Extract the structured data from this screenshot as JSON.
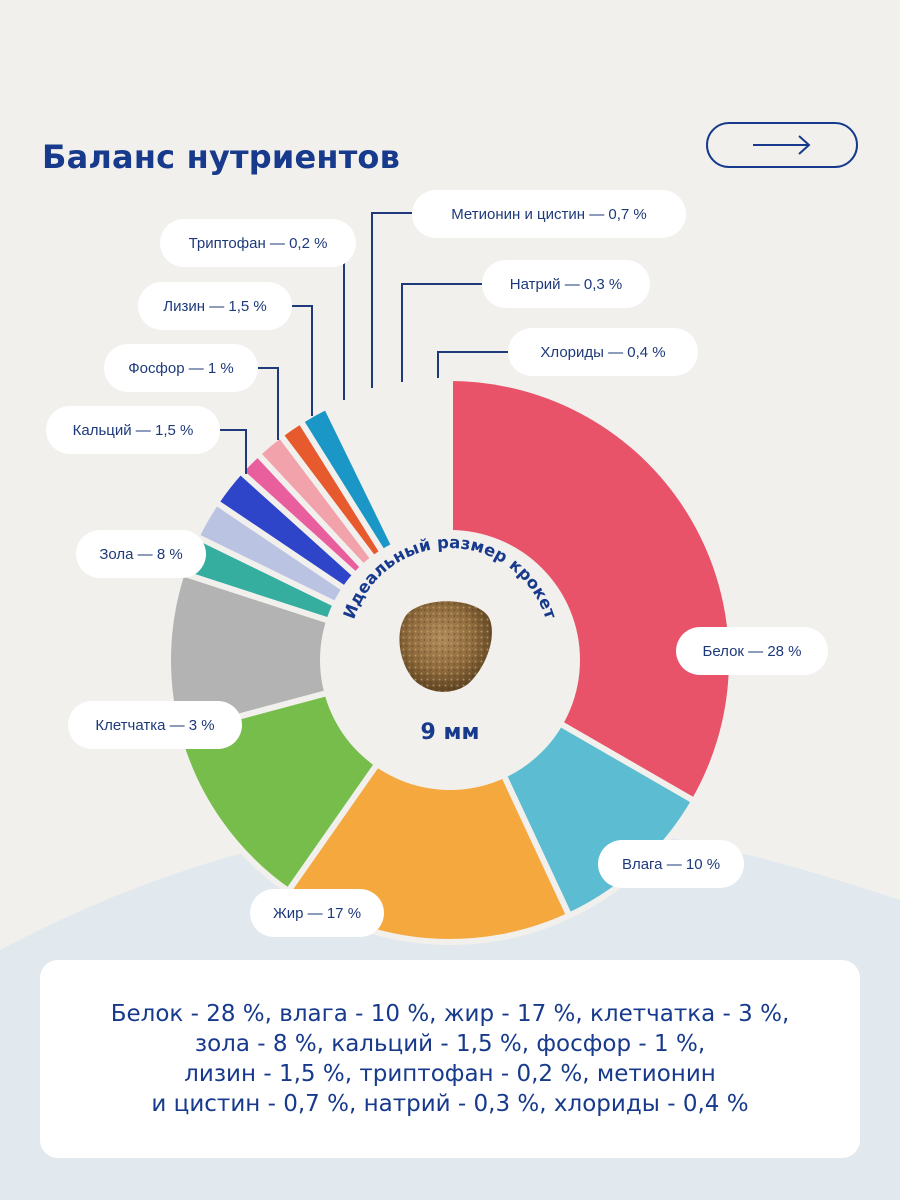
{
  "title": "Баланс нутриентов",
  "center": {
    "caption": "Идеальный размер крокет",
    "size_label": "9 мм"
  },
  "chart_data": {
    "type": "pie",
    "title": "Баланс нутриентов",
    "slices": [
      {
        "label": "Белок — 28 %",
        "value": 28,
        "color": "#e8536a"
      },
      {
        "label": "Влага — 10 %",
        "value": 10,
        "color": "#5bbcd2"
      },
      {
        "label": "Жир — 17 %",
        "value": 17,
        "color": "#f5a83e"
      },
      {
        "label": "Клетчатка — 3 %",
        "value": 3,
        "color": "#76bd4b"
      },
      {
        "label": "Зола — 8 %",
        "value": 8,
        "color": "#b3b3b3"
      },
      {
        "label": "Кальций — 1,5 %",
        "value": 1.5,
        "color": "#35ae9f"
      },
      {
        "label": "Фосфор — 1 %",
        "value": 1,
        "color": "#bbc3e3"
      },
      {
        "label": "Лизин — 1,5 %",
        "value": 1.5,
        "color": "#2f45c9"
      },
      {
        "label": "Триптофан — 0,2 %",
        "value": 0.2,
        "color": "#e95f9e"
      },
      {
        "label": "Метионин и цистин — 0,7 %",
        "value": 0.7,
        "color": "#f1a2ab"
      },
      {
        "label": "Натрий — 0,3 %",
        "value": 0.3,
        "color": "#e65a2e"
      },
      {
        "label": "Хлориды — 0,4 %",
        "value": 0.4,
        "color": "#1a96c7"
      }
    ]
  },
  "summary": {
    "lines": [
      "Белок - 28 %, влага - 10 %, жир - 17 %, клетчатка - 3 %,",
      "зола - 8 %, кальций - 1,5 %, фосфор - 1 %,",
      "лизин - 1,5 %, триптофан - 0,2 %, метионин",
      "и цистин - 0,7 %, натрий - 0,3 %, хлориды - 0,4 %"
    ]
  }
}
